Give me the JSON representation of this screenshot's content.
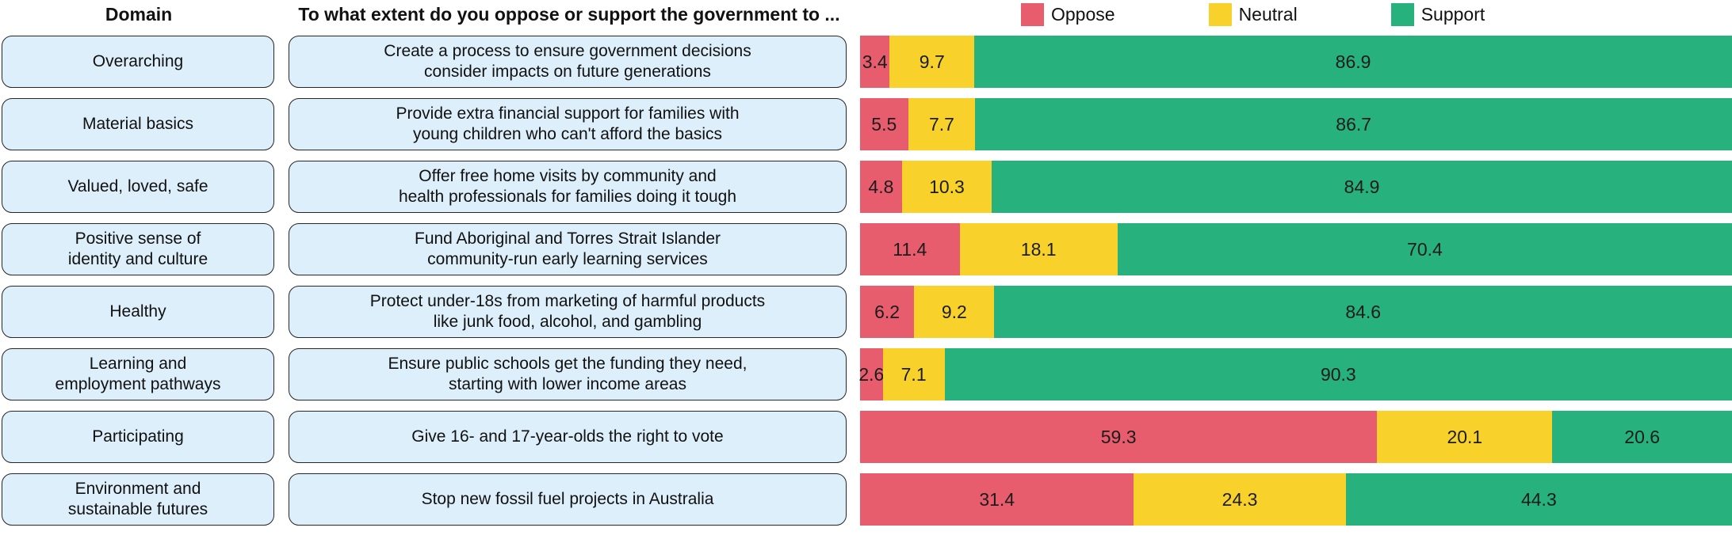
{
  "header": {
    "domain_label": "Domain",
    "question_label": "To what extent do you oppose or support the government to ..."
  },
  "legend": {
    "oppose_label": "Oppose",
    "neutral_label": "Neutral",
    "support_label": "Support"
  },
  "colors": {
    "oppose": "#e75d6e",
    "neutral": "#f8d22a",
    "support": "#26b17d",
    "box_fill": "#ddeffa",
    "box_border": "#262626"
  },
  "chart_data": {
    "type": "bar",
    "stacked": true,
    "orientation": "horizontal",
    "unit": "percent",
    "xlim": [
      0,
      100
    ],
    "grid": false,
    "legend_position": "top-right",
    "series_names": [
      "Oppose",
      "Neutral",
      "Support"
    ],
    "rows": [
      {
        "domain": "Overarching",
        "question": "Create a process to ensure government decisions\nconsider impacts on future generations",
        "oppose": 3.4,
        "neutral": 9.7,
        "support": 86.9
      },
      {
        "domain": "Material basics",
        "question": "Provide extra financial support for families with\nyoung children who can't afford the basics",
        "oppose": 5.5,
        "neutral": 7.7,
        "support": 86.7
      },
      {
        "domain": "Valued, loved, safe",
        "question": "Offer free home visits by community and\nhealth professionals for families doing it tough",
        "oppose": 4.8,
        "neutral": 10.3,
        "support": 84.9
      },
      {
        "domain": "Positive sense of\nidentity and culture",
        "question": "Fund Aboriginal and Torres Strait Islander\ncommunity-run early learning services",
        "oppose": 11.4,
        "neutral": 18.1,
        "support": 70.4
      },
      {
        "domain": "Healthy",
        "question": "Protect under-18s from marketing of harmful products\nlike junk food, alcohol, and gambling",
        "oppose": 6.2,
        "neutral": 9.2,
        "support": 84.6
      },
      {
        "domain": "Learning and\nemployment pathways",
        "question": "Ensure public schools get the funding they need,\nstarting with lower income areas",
        "oppose": 2.6,
        "neutral": 7.1,
        "support": 90.3
      },
      {
        "domain": "Participating",
        "question": "Give 16- and 17-year-olds the right to vote",
        "oppose": 59.3,
        "neutral": 20.1,
        "support": 20.6
      },
      {
        "domain": "Environment and\nsustainable futures",
        "question": "Stop new fossil fuel projects in Australia",
        "oppose": 31.4,
        "neutral": 24.3,
        "support": 44.3
      }
    ]
  }
}
